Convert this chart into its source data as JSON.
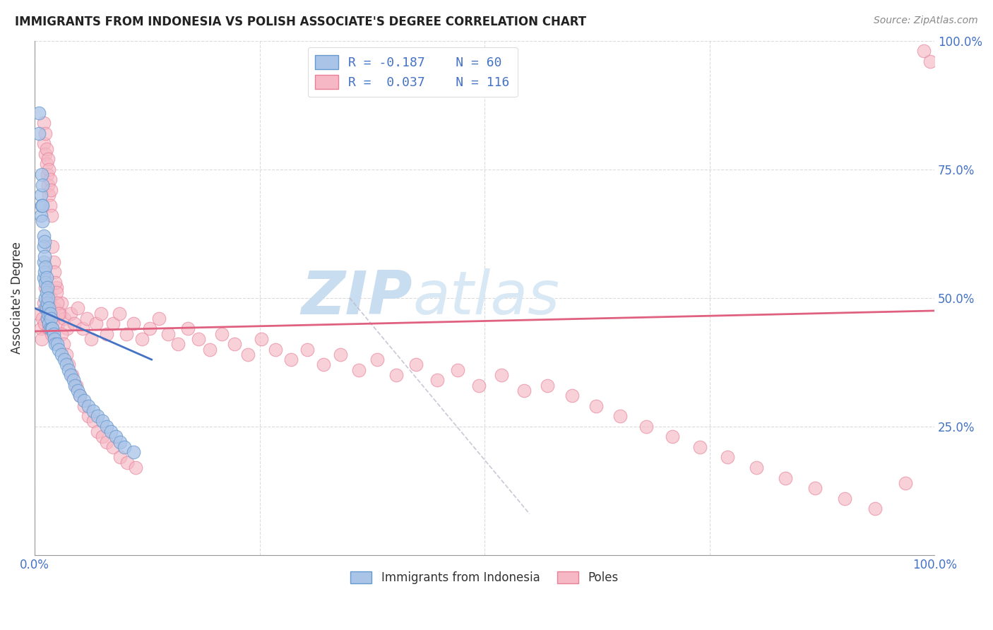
{
  "title": "IMMIGRANTS FROM INDONESIA VS POLISH ASSOCIATE'S DEGREE CORRELATION CHART",
  "source": "Source: ZipAtlas.com",
  "ylabel": "Associate's Degree",
  "xlim": [
    0,
    1
  ],
  "ylim": [
    0,
    1
  ],
  "legend_label_indonesia": "Immigrants from Indonesia",
  "legend_label_poles": "Poles",
  "background_color": "#ffffff",
  "indonesia_x": [
    0.005,
    0.005,
    0.007,
    0.007,
    0.008,
    0.008,
    0.009,
    0.009,
    0.009,
    0.01,
    0.01,
    0.01,
    0.01,
    0.011,
    0.011,
    0.011,
    0.012,
    0.012,
    0.012,
    0.012,
    0.013,
    0.013,
    0.013,
    0.014,
    0.014,
    0.014,
    0.015,
    0.015,
    0.016,
    0.016,
    0.017,
    0.017,
    0.018,
    0.019,
    0.02,
    0.021,
    0.022,
    0.023,
    0.025,
    0.027,
    0.03,
    0.033,
    0.035,
    0.038,
    0.04,
    0.043,
    0.045,
    0.048,
    0.05,
    0.055,
    0.06,
    0.065,
    0.07,
    0.075,
    0.08,
    0.085,
    0.09,
    0.095,
    0.1,
    0.11
  ],
  "indonesia_y": [
    0.86,
    0.82,
    0.7,
    0.66,
    0.74,
    0.68,
    0.72,
    0.68,
    0.65,
    0.62,
    0.6,
    0.57,
    0.54,
    0.61,
    0.58,
    0.55,
    0.56,
    0.53,
    0.5,
    0.48,
    0.54,
    0.51,
    0.48,
    0.52,
    0.49,
    0.46,
    0.5,
    0.47,
    0.48,
    0.45,
    0.47,
    0.44,
    0.46,
    0.44,
    0.44,
    0.43,
    0.42,
    0.41,
    0.41,
    0.4,
    0.39,
    0.38,
    0.37,
    0.36,
    0.35,
    0.34,
    0.33,
    0.32,
    0.31,
    0.3,
    0.29,
    0.28,
    0.27,
    0.26,
    0.25,
    0.24,
    0.23,
    0.22,
    0.21,
    0.2
  ],
  "poles_x": [
    0.005,
    0.007,
    0.008,
    0.009,
    0.01,
    0.011,
    0.012,
    0.013,
    0.014,
    0.015,
    0.016,
    0.017,
    0.018,
    0.019,
    0.02,
    0.022,
    0.024,
    0.026,
    0.028,
    0.03,
    0.033,
    0.036,
    0.04,
    0.044,
    0.048,
    0.053,
    0.058,
    0.063,
    0.068,
    0.074,
    0.08,
    0.087,
    0.094,
    0.102,
    0.11,
    0.119,
    0.128,
    0.138,
    0.148,
    0.159,
    0.17,
    0.182,
    0.195,
    0.208,
    0.222,
    0.237,
    0.252,
    0.268,
    0.285,
    0.303,
    0.321,
    0.34,
    0.36,
    0.381,
    0.402,
    0.424,
    0.447,
    0.47,
    0.494,
    0.519,
    0.544,
    0.57,
    0.597,
    0.624,
    0.651,
    0.68,
    0.709,
    0.739,
    0.77,
    0.802,
    0.834,
    0.867,
    0.9,
    0.934,
    0.968,
    0.01,
    0.01,
    0.012,
    0.012,
    0.013,
    0.013,
    0.014,
    0.015,
    0.015,
    0.016,
    0.016,
    0.017,
    0.017,
    0.018,
    0.019,
    0.02,
    0.021,
    0.022,
    0.023,
    0.024,
    0.025,
    0.027,
    0.03,
    0.032,
    0.035,
    0.038,
    0.042,
    0.046,
    0.05,
    0.055,
    0.06,
    0.065,
    0.07,
    0.075,
    0.08,
    0.087,
    0.095,
    0.103,
    0.112,
    0.988,
    0.995
  ],
  "poles_y": [
    0.47,
    0.44,
    0.42,
    0.46,
    0.49,
    0.45,
    0.52,
    0.48,
    0.46,
    0.51,
    0.44,
    0.47,
    0.5,
    0.43,
    0.45,
    0.48,
    0.52,
    0.45,
    0.47,
    0.49,
    0.46,
    0.44,
    0.47,
    0.45,
    0.48,
    0.44,
    0.46,
    0.42,
    0.45,
    0.47,
    0.43,
    0.45,
    0.47,
    0.43,
    0.45,
    0.42,
    0.44,
    0.46,
    0.43,
    0.41,
    0.44,
    0.42,
    0.4,
    0.43,
    0.41,
    0.39,
    0.42,
    0.4,
    0.38,
    0.4,
    0.37,
    0.39,
    0.36,
    0.38,
    0.35,
    0.37,
    0.34,
    0.36,
    0.33,
    0.35,
    0.32,
    0.33,
    0.31,
    0.29,
    0.27,
    0.25,
    0.23,
    0.21,
    0.19,
    0.17,
    0.15,
    0.13,
    0.11,
    0.09,
    0.14,
    0.8,
    0.84,
    0.78,
    0.82,
    0.76,
    0.79,
    0.74,
    0.77,
    0.72,
    0.75,
    0.7,
    0.73,
    0.68,
    0.71,
    0.66,
    0.6,
    0.57,
    0.55,
    0.53,
    0.51,
    0.49,
    0.47,
    0.43,
    0.41,
    0.39,
    0.37,
    0.35,
    0.33,
    0.31,
    0.29,
    0.27,
    0.26,
    0.24,
    0.23,
    0.22,
    0.21,
    0.19,
    0.18,
    0.17,
    0.98,
    0.96
  ],
  "indonesia_marker_color": "#aac4e8",
  "indonesia_marker_edge": "#6699cc",
  "poles_marker_color": "#f5b8c4",
  "poles_marker_edge": "#e8809a",
  "indonesia_line_color": "#4472c4",
  "poles_line_color": "#e06080",
  "diagonal_line_color": "#bbbbcc",
  "indonesia_trend": [
    0.0,
    0.13,
    0.48,
    0.38
  ],
  "poles_trend": [
    0.0,
    1.0,
    0.435,
    0.475
  ],
  "diagonal": [
    0.35,
    0.5,
    0.55,
    0.08
  ]
}
